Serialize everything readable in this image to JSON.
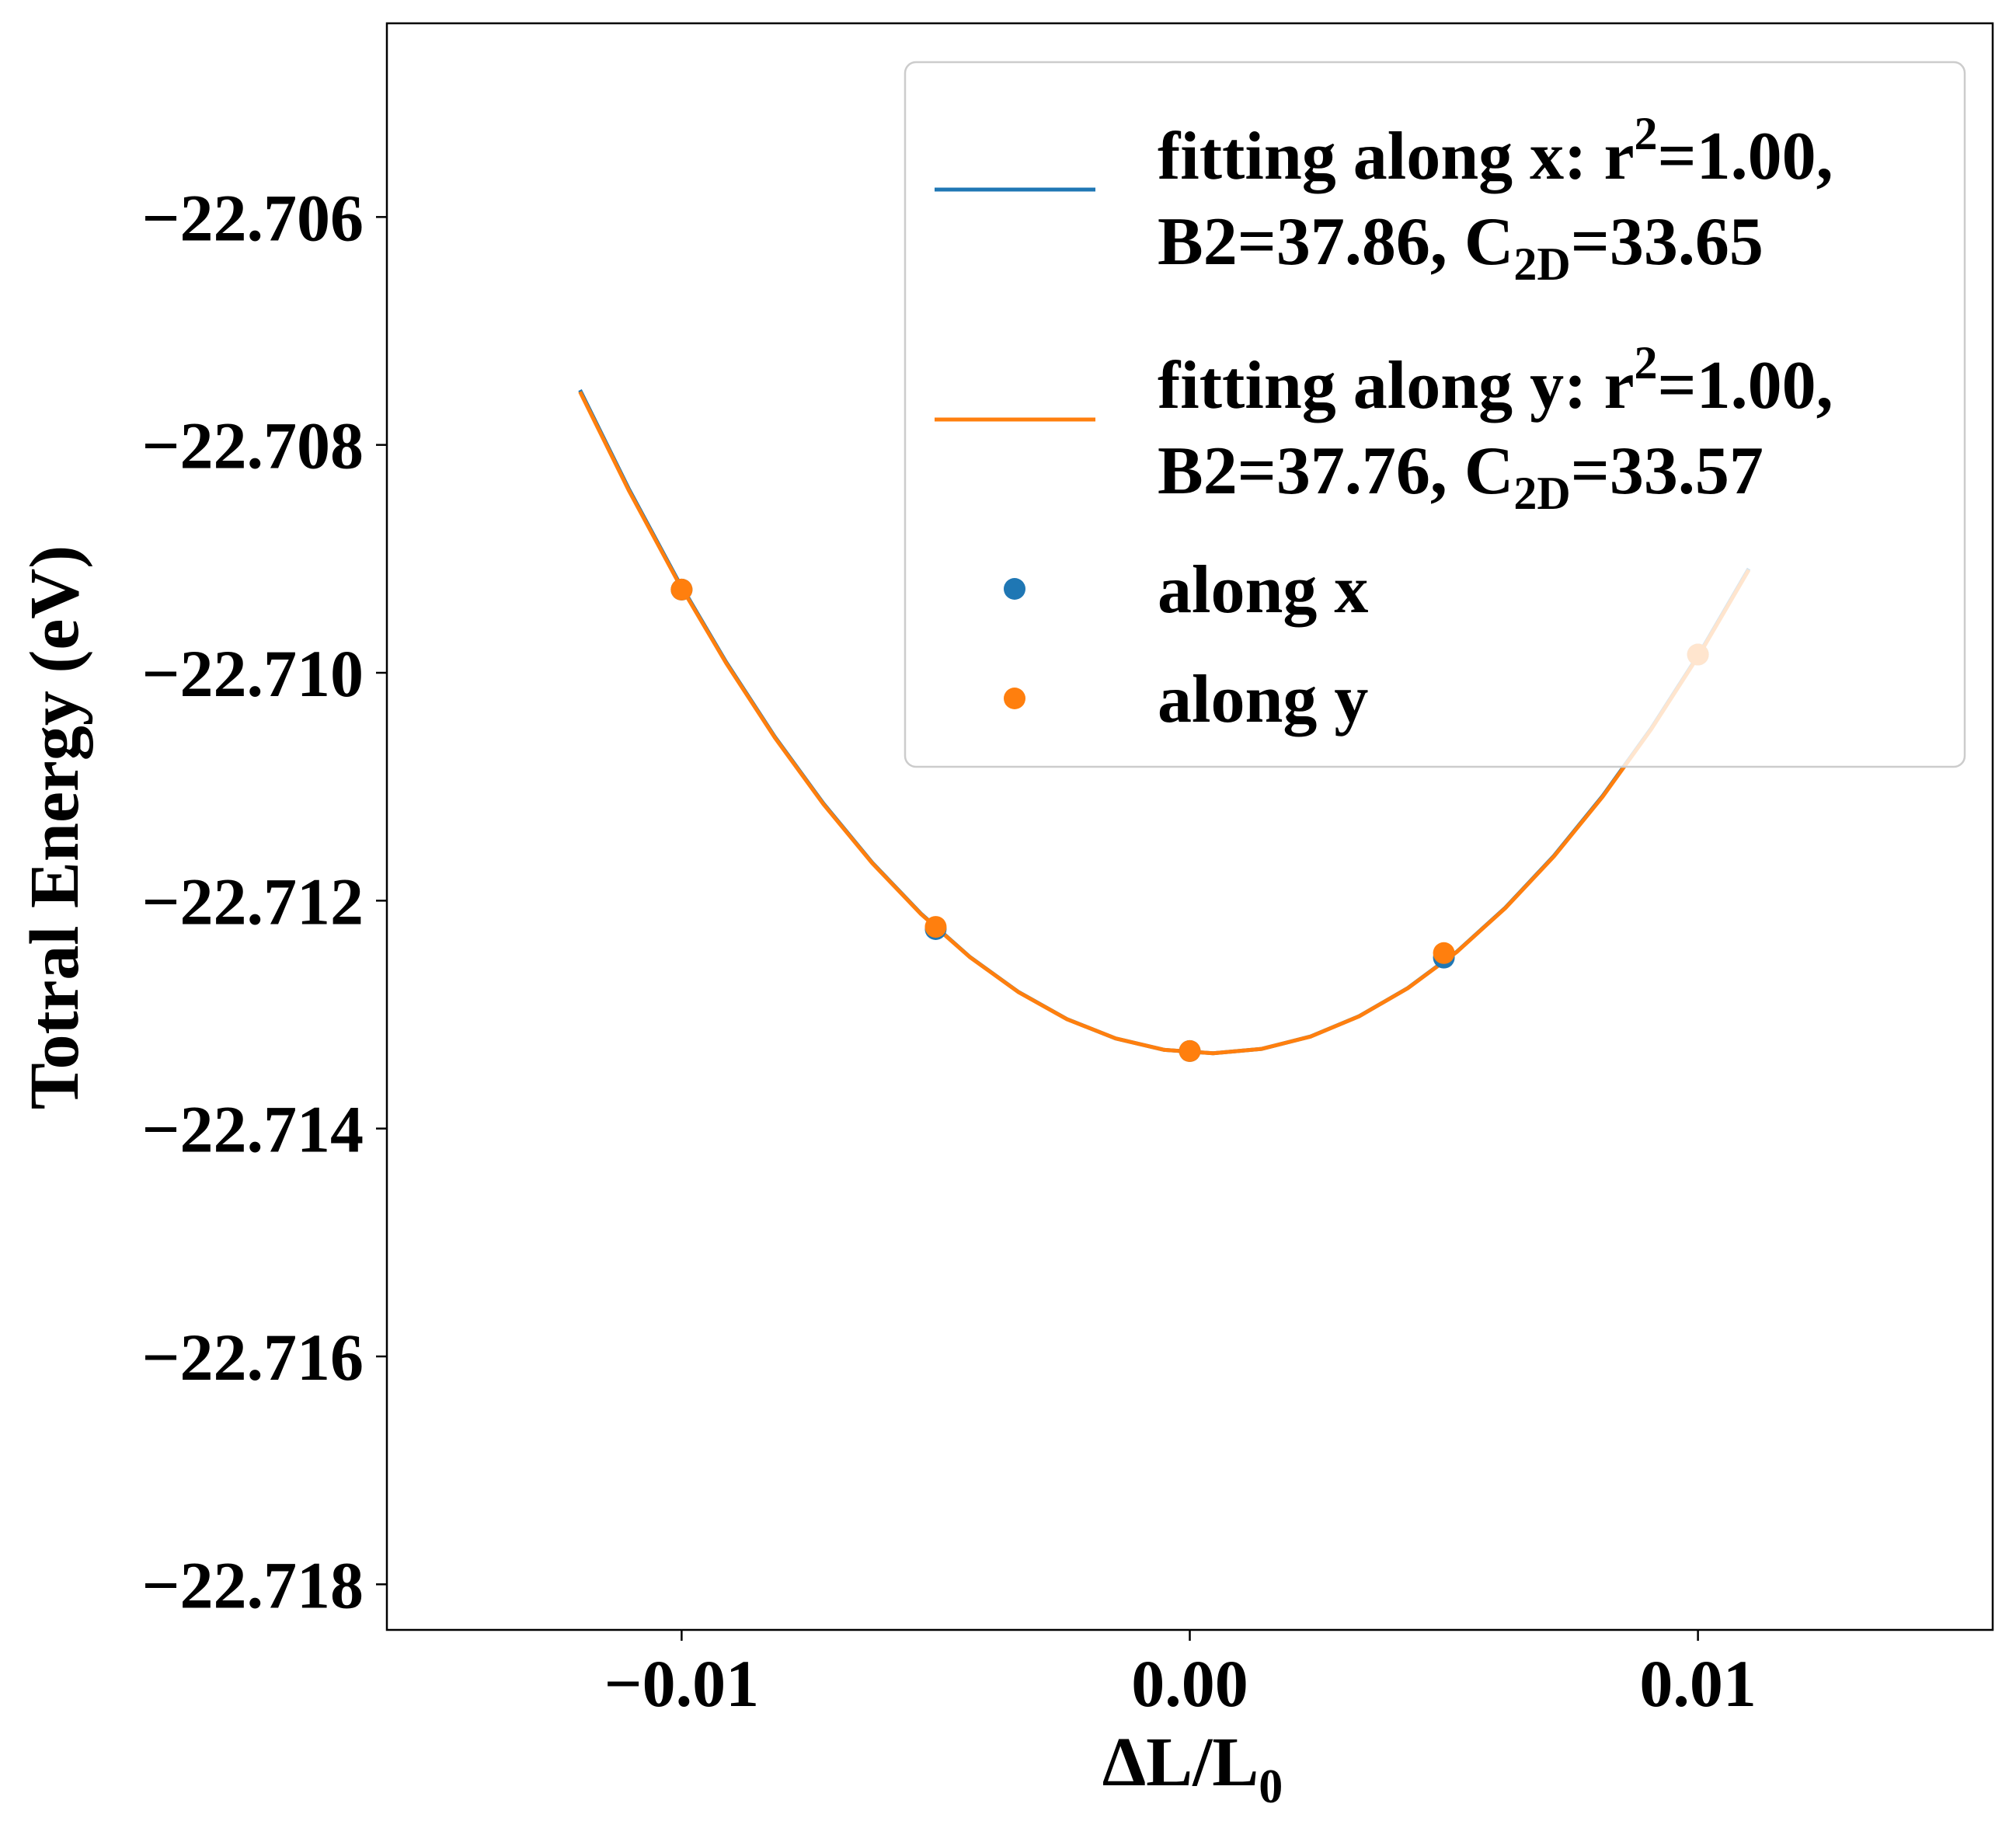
{
  "chart_data": {
    "type": "scatter",
    "title": "",
    "xlabel": {
      "main": "ΔL/L",
      "sub": "0"
    },
    "ylabel": "Totral Energy (eV)",
    "xlim": [
      -0.0158,
      0.0158
    ],
    "ylim": [
      -0.7184,
      -0.7043
    ],
    "y_offset_label": "",
    "x_ticks": [
      {
        "value": -0.01,
        "label": "−0.01"
      },
      {
        "value": 0.0,
        "label": "0.00"
      },
      {
        "value": 0.01,
        "label": "0.01"
      }
    ],
    "y_ticks": [
      {
        "value": -0.706,
        "label": "−22.706"
      },
      {
        "value": -0.708,
        "label": "−22.708"
      },
      {
        "value": -0.71,
        "label": "−22.710"
      },
      {
        "value": -0.712,
        "label": "−22.712"
      },
      {
        "value": -0.714,
        "label": "−22.714"
      },
      {
        "value": -0.716,
        "label": "−22.716"
      },
      {
        "value": -0.718,
        "label": "−22.718"
      }
    ],
    "y_base": -22,
    "grid": false,
    "legend_position": "top-right",
    "series": [
      {
        "name": "fitting along x: r²=1.00, B2=37.86, C2D=33.65",
        "kind": "line",
        "color": "#1f77b4",
        "fit": {
          "a": 37.86,
          "x0": 0.0004,
          "y0": -0.71334
        },
        "x_range": [
          -0.012,
          0.011
        ]
      },
      {
        "name": "fitting along y: r²=1.00, B2=37.76, C2D=33.57",
        "kind": "line",
        "color": "#ff7f0e",
        "fit": {
          "a": 37.76,
          "x0": 0.0004,
          "y0": -0.71334
        },
        "x_range": [
          -0.012,
          0.011
        ]
      },
      {
        "name": "along x",
        "kind": "scatter",
        "color": "#1f77b4",
        "x": [
          -0.01,
          -0.005,
          0.0,
          0.005,
          0.01
        ],
        "y": [
          -0.70927,
          -0.71225,
          -0.71332,
          -0.7125,
          -0.70984
        ]
      },
      {
        "name": "along y",
        "kind": "scatter",
        "color": "#ff7f0e",
        "x": [
          -0.01,
          -0.005,
          0.0,
          0.005,
          0.01
        ],
        "y": [
          -0.70927,
          -0.71223,
          -0.71332,
          -0.71246,
          -0.70984
        ]
      }
    ],
    "legend": [
      {
        "kind": "line",
        "color": "#1f77b4",
        "line1": {
          "pre": "fitting along x: r",
          "sup": "2",
          "post": "=1.00,"
        },
        "line2": {
          "pre": "B2=37.86, C",
          "sub": "2D",
          "post": "=33.65"
        }
      },
      {
        "kind": "line",
        "color": "#ff7f0e",
        "line1": {
          "pre": "fitting along y: r",
          "sup": "2",
          "post": "=1.00,"
        },
        "line2": {
          "pre": "B2=37.76, C",
          "sub": "2D",
          "post": "=33.57"
        }
      },
      {
        "kind": "marker",
        "color": "#1f77b4",
        "label": "along x"
      },
      {
        "kind": "marker",
        "color": "#ff7f0e",
        "label": "along y"
      }
    ]
  }
}
